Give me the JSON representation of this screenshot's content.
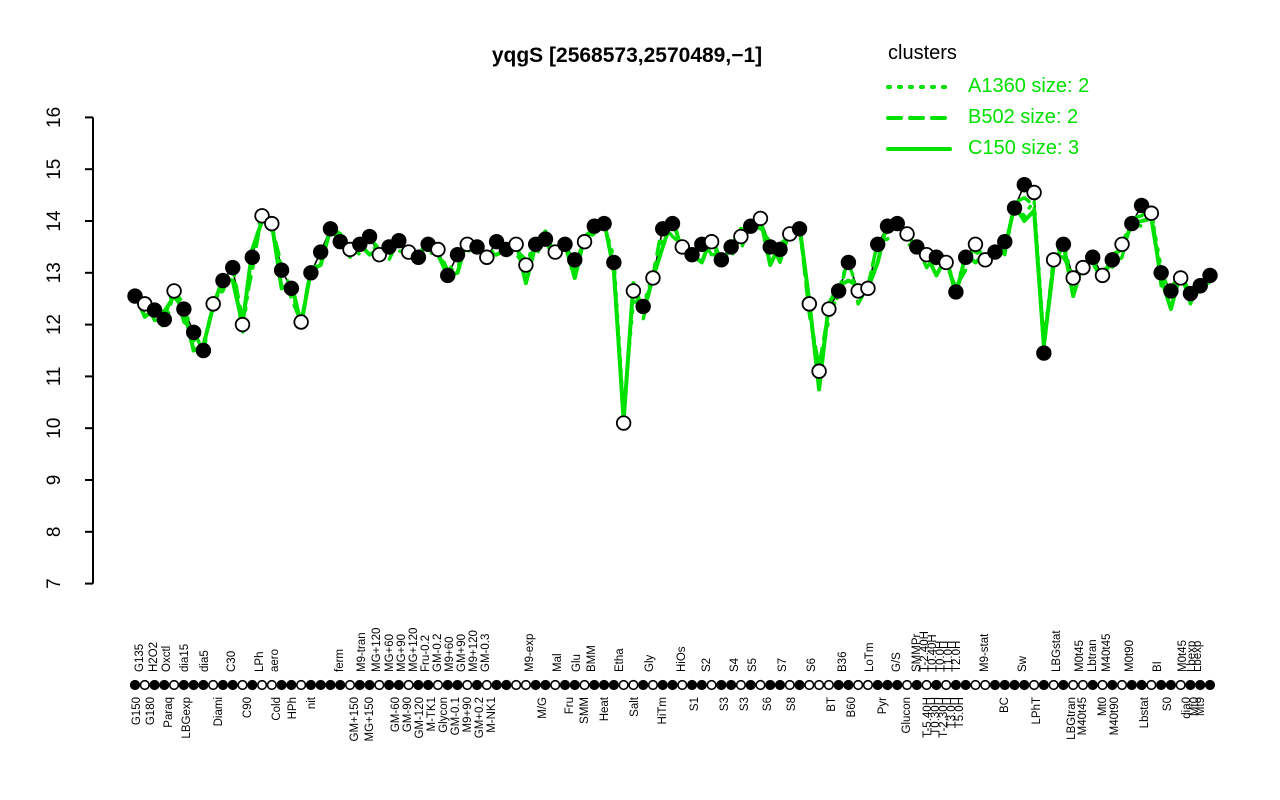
{
  "title": "yqgS [2568573,2570489,−1]",
  "legend": {
    "title": "clusters",
    "entries": [
      {
        "label": "A1360 size: 2",
        "line": "dotted"
      },
      {
        "label": "B502 size: 2",
        "line": "dashed"
      },
      {
        "label": "C150 size: 3",
        "line": "solid"
      }
    ]
  },
  "colors": {
    "cluster_green": "#00e100",
    "series_black": "#000000",
    "open_point_fill": "#ffffff",
    "background": "#ffffff"
  },
  "chart_data": {
    "type": "line",
    "title": "yqgS [2568573,2570489,−1]",
    "xlabel": "",
    "ylabel": "",
    "ylim": [
      7,
      16
    ],
    "yticks": [
      7,
      8,
      9,
      10,
      11,
      12,
      13,
      14,
      15,
      16
    ],
    "grid": false,
    "legend_position": "top-right",
    "x_labels": [
      [
        "G150",
        137,
        "b"
      ],
      [
        "G135",
        140,
        "t"
      ],
      [
        "G180",
        151,
        "b"
      ],
      [
        "H2O2",
        154,
        "t"
      ],
      [
        "Paraq",
        169,
        "b"
      ],
      [
        "Oxctl",
        167,
        "t"
      ],
      [
        "LBGexp",
        187,
        "b"
      ],
      [
        "dia15",
        185,
        "t"
      ],
      [
        "Diami",
        219,
        "b"
      ],
      [
        "dia5",
        205,
        "t"
      ],
      [
        "C90",
        248,
        "b"
      ],
      [
        "C30",
        232,
        "t"
      ],
      [
        "Cold",
        277,
        "b"
      ],
      [
        "LPh",
        260,
        "t"
      ],
      [
        "HPh",
        293,
        "b"
      ],
      [
        "aero",
        275,
        "t"
      ],
      [
        "nit",
        312,
        "b"
      ],
      [
        "ferm",
        340,
        "t"
      ],
      [
        "GM+150",
        355,
        "b"
      ],
      [
        "M9-tran",
        362,
        "t"
      ],
      [
        "MG+150",
        370,
        "b"
      ],
      [
        "MG+120",
        377,
        "t"
      ],
      [
        "MG+60",
        390,
        "t"
      ],
      [
        "GM-60",
        396,
        "b"
      ],
      [
        "MG+90",
        402,
        "t"
      ],
      [
        "GM-90",
        408,
        "b"
      ],
      [
        "MG+120",
        414,
        "t"
      ],
      [
        "GM-120",
        420,
        "b"
      ],
      [
        "Fru-0.2",
        426,
        "t"
      ],
      [
        "M-TK1",
        432,
        "b"
      ],
      [
        "GM-0.2",
        438,
        "t"
      ],
      [
        "Glycon",
        444,
        "b"
      ],
      [
        "M9+60",
        450,
        "t"
      ],
      [
        "GM-0.1",
        456,
        "b"
      ],
      [
        "GM+90",
        462,
        "t"
      ],
      [
        "M9+90",
        468,
        "b"
      ],
      [
        "M9+120",
        474,
        "t"
      ],
      [
        "GM+0.2",
        480,
        "b"
      ],
      [
        "GM-0.3",
        486,
        "t"
      ],
      [
        "M-NK1",
        492,
        "b"
      ],
      [
        "M9-exp",
        530,
        "t"
      ],
      [
        "M/G",
        543,
        "b"
      ],
      [
        "Mal",
        558,
        "t"
      ],
      [
        "Fru",
        570,
        "b"
      ],
      [
        "Glu",
        577,
        "t"
      ],
      [
        "SMM",
        585,
        "b"
      ],
      [
        "BMM",
        592,
        "t"
      ],
      [
        "Heat",
        605,
        "b"
      ],
      [
        "Etha",
        620,
        "t"
      ],
      [
        "Salt",
        635,
        "b"
      ],
      [
        "Gly",
        650,
        "t"
      ],
      [
        "HiTm",
        663,
        "b"
      ],
      [
        "HiOs",
        682,
        "t"
      ],
      [
        "S1",
        695,
        "b"
      ],
      [
        "S2",
        707,
        "t"
      ],
      [
        "S3",
        725,
        "b"
      ],
      [
        "S4",
        735,
        "t"
      ],
      [
        "S3",
        745,
        "b"
      ],
      [
        "S5",
        753,
        "t"
      ],
      [
        "S6",
        768,
        "b"
      ],
      [
        "S7",
        783,
        "t"
      ],
      [
        "S8",
        792,
        "b"
      ],
      [
        "S6",
        812,
        "t"
      ],
      [
        "BT",
        832,
        "b"
      ],
      [
        "B36",
        843,
        "t"
      ],
      [
        "B60",
        852,
        "b"
      ],
      [
        "LoTm",
        870,
        "t"
      ],
      [
        "Pyr",
        883,
        "b"
      ],
      [
        "G/S",
        897,
        "t"
      ],
      [
        "Glucon",
        907,
        "b"
      ],
      [
        "SMMPr",
        917,
        "t"
      ],
      [
        "T-2.40H",
        925,
        "t"
      ],
      [
        "T-5.40H",
        928,
        "b"
      ],
      [
        "T0.40H",
        933,
        "t"
      ],
      [
        "T0.30H",
        936,
        "b"
      ],
      [
        "T0.0H",
        941,
        "t"
      ],
      [
        "T-2.30H",
        944,
        "b"
      ],
      [
        "T1.0H",
        949,
        "t"
      ],
      [
        "T3.0H",
        952,
        "b"
      ],
      [
        "T2.0H",
        957,
        "t"
      ],
      [
        "T5.0H",
        960,
        "b"
      ],
      [
        "M9-stat",
        985,
        "t"
      ],
      [
        "BC",
        1005,
        "b"
      ],
      [
        "Sw",
        1023,
        "t"
      ],
      [
        "LPhT",
        1037,
        "b"
      ],
      [
        "LBGstat",
        1057,
        "t"
      ],
      [
        "LBGtran",
        1072,
        "b"
      ],
      [
        "M0t45",
        1080,
        "t"
      ],
      [
        "M40t45",
        1083,
        "b"
      ],
      [
        "Lbtran",
        1093,
        "t"
      ],
      [
        "Mt0",
        1103,
        "b"
      ],
      [
        "M40t45",
        1107,
        "t"
      ],
      [
        "M40t90",
        1115,
        "b"
      ],
      [
        "M0t90",
        1130,
        "t"
      ],
      [
        "Lbstat",
        1145,
        "b"
      ],
      [
        "BI",
        1158,
        "t"
      ],
      [
        "S0",
        1168,
        "b"
      ],
      [
        "M0t45",
        1183,
        "t"
      ],
      [
        "dia0",
        1187,
        "b"
      ],
      [
        "Lbexp",
        1192,
        "t"
      ],
      [
        "Mt0",
        1195,
        "b"
      ],
      [
        "Lbexp",
        1198,
        "t"
      ],
      [
        "Mt9",
        1201,
        "b"
      ]
    ],
    "series": [
      {
        "name": "yqgS profile",
        "style": "points",
        "color": "#000000",
        "values": [
          12.55,
          12.4,
          12.28,
          12.1,
          12.65,
          12.3,
          11.85,
          11.5,
          12.4,
          12.85,
          13.1,
          12.0,
          13.3,
          14.1,
          13.95,
          13.05,
          12.7,
          12.05,
          13.0,
          13.4,
          13.85,
          13.6,
          13.45,
          13.55,
          13.7,
          13.35,
          13.5,
          13.62,
          13.4,
          13.3,
          13.55,
          13.45,
          12.95,
          13.35,
          13.55,
          13.5,
          13.3,
          13.6,
          13.45,
          13.55,
          13.15,
          13.55,
          13.65,
          13.4,
          13.55,
          13.25,
          13.6,
          13.9,
          13.95,
          13.2,
          10.1,
          12.65,
          12.35,
          12.9,
          13.85,
          13.95,
          13.5,
          13.35,
          13.55,
          13.6,
          13.25,
          13.5,
          13.7,
          13.9,
          14.05,
          13.5,
          13.45,
          13.75,
          13.85,
          12.4,
          11.1,
          12.3,
          12.65,
          13.2,
          12.65,
          12.7,
          13.55,
          13.9,
          13.95,
          13.75,
          13.5,
          13.35,
          13.3,
          13.2,
          12.63,
          13.3,
          13.55,
          13.25,
          13.4,
          13.6,
          14.25,
          14.7,
          14.55,
          11.45,
          13.25,
          13.55,
          12.9,
          13.1,
          13.3,
          12.95,
          13.25,
          13.55,
          13.95,
          14.3,
          14.15,
          13.0,
          12.65,
          12.9,
          12.6,
          12.75,
          12.95
        ],
        "fills": [
          1,
          0,
          1,
          1,
          0,
          1,
          1,
          1,
          0,
          1,
          1,
          0,
          1,
          0,
          0,
          1,
          1,
          0,
          1,
          1,
          1,
          1,
          0,
          1,
          1,
          0,
          1,
          1,
          0,
          1,
          1,
          0,
          1,
          1,
          0,
          1,
          0,
          1,
          1,
          0,
          0,
          1,
          1,
          0,
          1,
          1,
          0,
          1,
          1,
          1,
          0,
          0,
          1,
          0,
          1,
          1,
          0,
          1,
          1,
          0,
          1,
          1,
          0,
          1,
          0,
          1,
          1,
          0,
          1,
          0,
          0,
          0,
          1,
          1,
          0,
          0,
          1,
          1,
          1,
          0,
          1,
          0,
          1,
          0,
          1,
          1,
          0,
          0,
          1,
          1,
          1,
          1,
          0,
          1,
          0,
          1,
          0,
          0,
          1,
          0,
          1,
          0,
          1,
          1,
          0,
          1,
          1,
          0,
          1,
          1,
          1
        ]
      },
      {
        "name": "A1360",
        "style": "dotted",
        "color": "#00e100",
        "values": [
          12.55,
          12.3,
          12.33,
          11.9,
          12.65,
          12.4,
          11.7,
          11.55,
          12.4,
          12.75,
          13.15,
          11.8,
          13.3,
          14.2,
          13.8,
          13.1,
          12.7,
          11.95,
          13.05,
          13.2,
          13.85,
          13.7,
          13.3,
          13.6,
          13.7,
          13.25,
          13.55,
          13.42,
          13.4,
          13.35,
          13.4,
          13.5,
          12.95,
          13.45,
          13.4,
          13.55,
          13.3,
          13.5,
          13.5,
          13.35,
          13.15,
          13.65,
          13.5,
          13.45,
          13.55,
          13.15,
          13.65,
          13.75,
          13.95,
          13.3,
          10.3,
          12.45,
          12.35,
          13.0,
          13.7,
          14.0,
          13.35,
          13.4,
          13.55,
          13.5,
          13.3,
          13.3,
          13.7,
          14.0,
          13.9,
          13.55,
          13.3,
          13.8,
          13.85,
          12.3,
          11.15,
          12.1,
          12.65,
          13.3,
          12.5,
          12.75,
          13.55,
          13.8,
          14.0,
          13.55,
          13.5,
          13.45,
          13.15,
          13.25,
          12.63,
          13.4,
          13.4,
          13.3,
          13.4,
          13.5,
          14.3,
          14.1,
          14.4,
          11.7,
          13.25,
          13.65,
          12.75,
          13.15,
          13.3,
          13.05,
          13.1,
          13.6,
          13.95,
          13.9,
          14.15,
          13.1,
          12.5,
          12.95,
          12.6,
          12.85,
          12.8
        ]
      },
      {
        "name": "B502",
        "style": "dashed",
        "color": "#00e100",
        "values": [
          12.5,
          12.5,
          12.08,
          12.1,
          12.75,
          12.05,
          11.9,
          11.45,
          12.5,
          12.65,
          13.1,
          12.1,
          13.05,
          14.15,
          13.9,
          13.15,
          12.5,
          12.05,
          13.1,
          13.15,
          13.9,
          13.55,
          13.55,
          13.35,
          13.7,
          13.45,
          13.25,
          13.67,
          13.35,
          13.4,
          13.35,
          13.45,
          13.05,
          13.1,
          13.6,
          13.45,
          13.4,
          13.35,
          13.5,
          13.45,
          13.25,
          13.3,
          13.75,
          13.35,
          13.65,
          13.0,
          13.65,
          13.85,
          14.05,
          12.95,
          10.2,
          12.75,
          12.1,
          12.95,
          13.95,
          13.7,
          13.55,
          13.3,
          13.65,
          13.35,
          13.35,
          13.55,
          13.45,
          13.95,
          13.85,
          13.6,
          13.2,
          13.8,
          13.9,
          12.2,
          11.2,
          12.3,
          12.55,
          13.3,
          12.4,
          12.75,
          13.6,
          13.65,
          14.05,
          13.7,
          13.55,
          13.1,
          13.35,
          13.15,
          12.73,
          13.05,
          13.6,
          13.2,
          13.5,
          13.35,
          14.35,
          14.45,
          14.3,
          11.5,
          13.35,
          13.3,
          12.95,
          13.2,
          13.2,
          13.05,
          13.15,
          13.3,
          14.05,
          14.1,
          14.25,
          12.75,
          12.7,
          13.0,
          12.4,
          12.85,
          12.9
        ]
      },
      {
        "name": "C150",
        "style": "solid",
        "color": "#00e100",
        "values": [
          12.6,
          12.15,
          12.28,
          12.25,
          12.55,
          12.3,
          11.5,
          11.6,
          12.35,
          12.9,
          12.85,
          12.0,
          13.45,
          14.0,
          13.95,
          12.7,
          12.8,
          12.0,
          13.05,
          13.15,
          13.85,
          13.75,
          13.35,
          13.55,
          13.35,
          13.45,
          13.45,
          13.67,
          13.3,
          13.3,
          13.65,
          13.35,
          12.95,
          13.0,
          13.65,
          13.45,
          13.35,
          13.35,
          13.45,
          13.6,
          12.8,
          13.55,
          13.8,
          13.3,
          13.55,
          12.9,
          13.7,
          13.85,
          14.0,
          13.05,
          10.15,
          12.8,
          12.25,
          12.9,
          13.5,
          14.05,
          13.4,
          13.35,
          13.2,
          13.7,
          13.2,
          13.5,
          13.85,
          13.8,
          14.05,
          13.15,
          13.55,
          13.7,
          13.9,
          12.45,
          10.75,
          12.4,
          12.75,
          12.85,
          12.75,
          12.7,
          13.2,
          14.0,
          13.9,
          13.8,
          13.4,
          13.35,
          12.95,
          13.3,
          12.58,
          13.35,
          13.2,
          13.35,
          13.4,
          13.45,
          14.3,
          14.0,
          14.2,
          11.6,
          13.15,
          13.55,
          12.55,
          13.2,
          13.2,
          12.85,
          13.35,
          13.45,
          13.95,
          14.0,
          14.05,
          12.9,
          12.3,
          13.0,
          12.55,
          12.65,
          12.9
        ]
      }
    ]
  }
}
